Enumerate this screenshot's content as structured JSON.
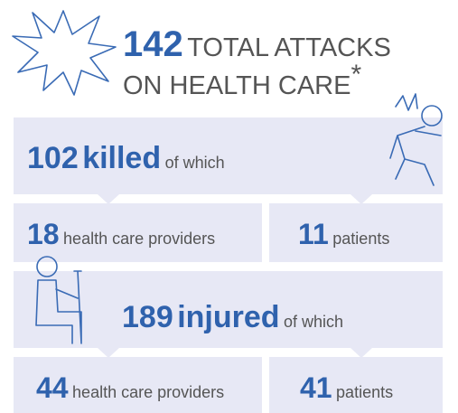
{
  "header": {
    "number": 142,
    "title_line1": "TOTAL ATTACKS",
    "title_line2": "ON HEALTH CARE",
    "footnote_mark": "*"
  },
  "killed": {
    "number": 102,
    "word": "killed",
    "suffix": "of which",
    "breakdown": [
      {
        "number": 18,
        "label": "health care providers"
      },
      {
        "number": 11,
        "label": "patients"
      }
    ]
  },
  "injured": {
    "number": 189,
    "word": "injured",
    "suffix": "of which",
    "breakdown": [
      {
        "number": 44,
        "label": "health care providers"
      },
      {
        "number": 41,
        "label": "patients"
      }
    ]
  }
}
